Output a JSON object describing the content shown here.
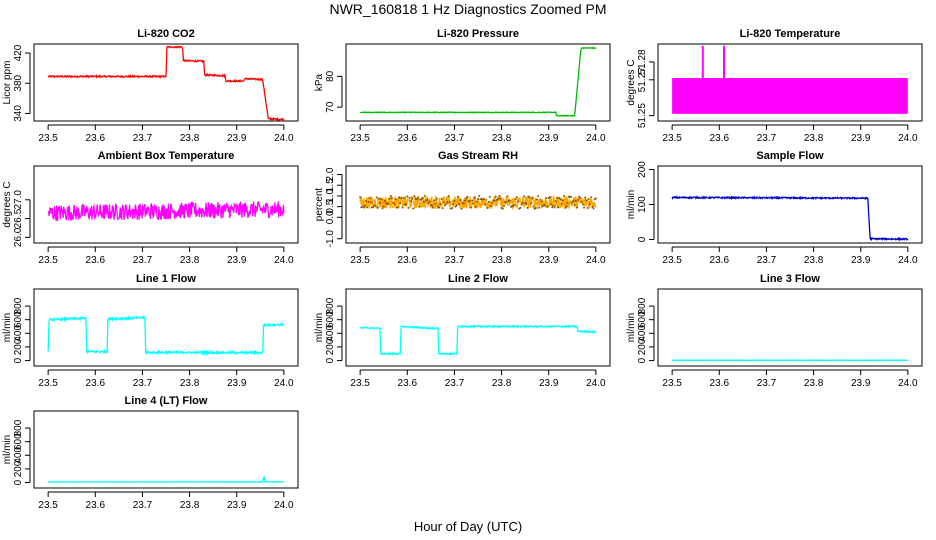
{
  "figure": {
    "title": "NWR_160818  1 Hz Diagnostics Zoomed PM",
    "xlabel": "Hour of Day (UTC)"
  },
  "chart_data": [
    {
      "type": "line",
      "title": "Li-820 CO2",
      "ylabel": "Licor ppm",
      "color": "#ff0000",
      "xlim": [
        23.47,
        24.03
      ],
      "ylim": [
        330,
        432
      ],
      "yticks": [
        340,
        380,
        420
      ],
      "xticks": [
        23.5,
        23.6,
        23.7,
        23.8,
        23.9,
        24.0
      ],
      "x": [
        23.5,
        23.75,
        23.752,
        23.785,
        23.787,
        23.83,
        23.832,
        23.875,
        23.877,
        23.915,
        23.917,
        23.955,
        23.967,
        24.0
      ],
      "y": [
        389,
        389,
        428,
        428,
        410,
        409,
        391,
        390,
        383,
        383,
        386,
        385,
        333,
        332
      ],
      "noise": 1
    },
    {
      "type": "line",
      "title": "Li-820 Pressure",
      "ylabel": "kPa",
      "color": "#00bb00",
      "xlim": [
        23.47,
        24.03
      ],
      "ylim": [
        65.5,
        90.5
      ],
      "yticks": [
        70,
        80
      ],
      "xticks": [
        23.5,
        23.6,
        23.7,
        23.8,
        23.9,
        24.0
      ],
      "x": [
        23.5,
        23.915,
        23.917,
        23.955,
        23.968,
        23.97,
        24.0
      ],
      "y": [
        68.3,
        68.3,
        67.2,
        67.2,
        88.4,
        89.2,
        89.2
      ],
      "noise": 0.1
    },
    {
      "type": "line",
      "title": "Li-820 Temperature",
      "ylabel": "degrees C",
      "color": "#ff00ff",
      "xlim": [
        23.47,
        24.03
      ],
      "ylim": [
        51.247,
        51.29
      ],
      "yticks": [
        51.25,
        51.27,
        51.28
      ],
      "xticks": [
        23.5,
        23.6,
        23.7,
        23.8,
        23.9,
        24.0
      ],
      "x": [
        23.5,
        24.0
      ],
      "y": [
        51.251,
        51.271
      ],
      "band": true,
      "spikes": [
        {
          "x": 23.565,
          "y": 51.289
        },
        {
          "x": 23.61,
          "y": 51.289
        },
        {
          "x": 23.83,
          "y": 51.258
        }
      ]
    },
    {
      "type": "line",
      "title": "Ambient Box Temperature",
      "ylabel": "degrees C",
      "color": "#ff00ff",
      "xlim": [
        23.47,
        24.03
      ],
      "ylim": [
        25.85,
        27.9
      ],
      "yticks": [
        26.0,
        26.5,
        27.0
      ],
      "xticks": [
        23.5,
        23.6,
        23.7,
        23.8,
        23.9,
        24.0
      ],
      "x": [
        23.5,
        24.0
      ],
      "y": [
        26.65,
        26.75
      ],
      "noise": 0.22
    },
    {
      "type": "line",
      "title": "Gas Stream RH",
      "ylabel": "percent",
      "color": "#ffa500",
      "xlim": [
        23.47,
        24.03
      ],
      "ylim": [
        -1.2,
        2.4
      ],
      "yticks": [
        -1.0,
        0.0,
        0.5,
        1.0,
        1.5,
        2.0
      ],
      "xticks": [
        23.5,
        23.6,
        23.7,
        23.8,
        23.9,
        24.0
      ],
      "x": [
        23.5,
        24.0
      ],
      "y": [
        0.7,
        0.7
      ],
      "noise": 0.3,
      "dots": true
    },
    {
      "type": "line",
      "title": "Sample Flow",
      "ylabel": "ml/min",
      "color": "#0000cc",
      "xlim": [
        23.47,
        24.03
      ],
      "ylim": [
        -10,
        210
      ],
      "yticks": [
        0,
        100,
        200
      ],
      "xticks": [
        23.5,
        23.6,
        23.7,
        23.8,
        23.9,
        24.0
      ],
      "x": [
        23.5,
        23.915,
        23.92,
        24.0
      ],
      "y": [
        120,
        118,
        2,
        1
      ],
      "noise": 2
    },
    {
      "type": "line",
      "title": "Line 1 Flow",
      "ylabel": "ml/min",
      "color": "#00ffff",
      "xlim": [
        23.47,
        24.03
      ],
      "ylim": [
        -80,
        1050
      ],
      "yticks": [
        0,
        200,
        400,
        600,
        800
      ],
      "xticks": [
        23.5,
        23.6,
        23.7,
        23.8,
        23.9,
        24.0
      ],
      "x": [
        23.5,
        23.502,
        23.58,
        23.582,
        23.625,
        23.627,
        23.705,
        23.707,
        23.955,
        23.957,
        24.0
      ],
      "y": [
        130,
        600,
        620,
        130,
        130,
        610,
        630,
        120,
        115,
        520,
        530
      ],
      "noise": 15
    },
    {
      "type": "line",
      "title": "Line 2 Flow",
      "ylabel": "ml/min",
      "color": "#00ffff",
      "xlim": [
        23.47,
        24.03
      ],
      "ylim": [
        -80,
        1050
      ],
      "yticks": [
        0,
        200,
        400,
        600,
        800
      ],
      "xticks": [
        23.5,
        23.6,
        23.7,
        23.8,
        23.9,
        24.0
      ],
      "x": [
        23.5,
        23.542,
        23.544,
        23.585,
        23.587,
        23.665,
        23.667,
        23.705,
        23.707,
        23.96,
        23.962,
        24.0
      ],
      "y": [
        480,
        475,
        100,
        100,
        500,
        470,
        100,
        100,
        500,
        500,
        430,
        420
      ],
      "noise": 10
    },
    {
      "type": "line",
      "title": "Line 3 Flow",
      "ylabel": "ml/min",
      "color": "#00ffff",
      "xlim": [
        23.47,
        24.03
      ],
      "ylim": [
        -80,
        1050
      ],
      "yticks": [
        0,
        200,
        400,
        600,
        800
      ],
      "xticks": [
        23.5,
        23.6,
        23.7,
        23.8,
        23.9,
        24.0
      ],
      "x": [
        23.5,
        24.0
      ],
      "y": [
        5,
        5
      ],
      "noise": 2
    },
    {
      "type": "line",
      "title": "Line 4 (LT) Flow",
      "ylabel": "ml/min",
      "color": "#00ffff",
      "xlim": [
        23.47,
        24.03
      ],
      "ylim": [
        -80,
        1050
      ],
      "yticks": [
        0,
        200,
        400,
        600,
        800
      ],
      "xticks": [
        23.5,
        23.6,
        23.7,
        23.8,
        23.9,
        24.0
      ],
      "x": [
        23.5,
        23.955,
        23.958,
        23.96,
        24.0
      ],
      "y": [
        10,
        10,
        90,
        12,
        10
      ],
      "noise": 2
    }
  ]
}
